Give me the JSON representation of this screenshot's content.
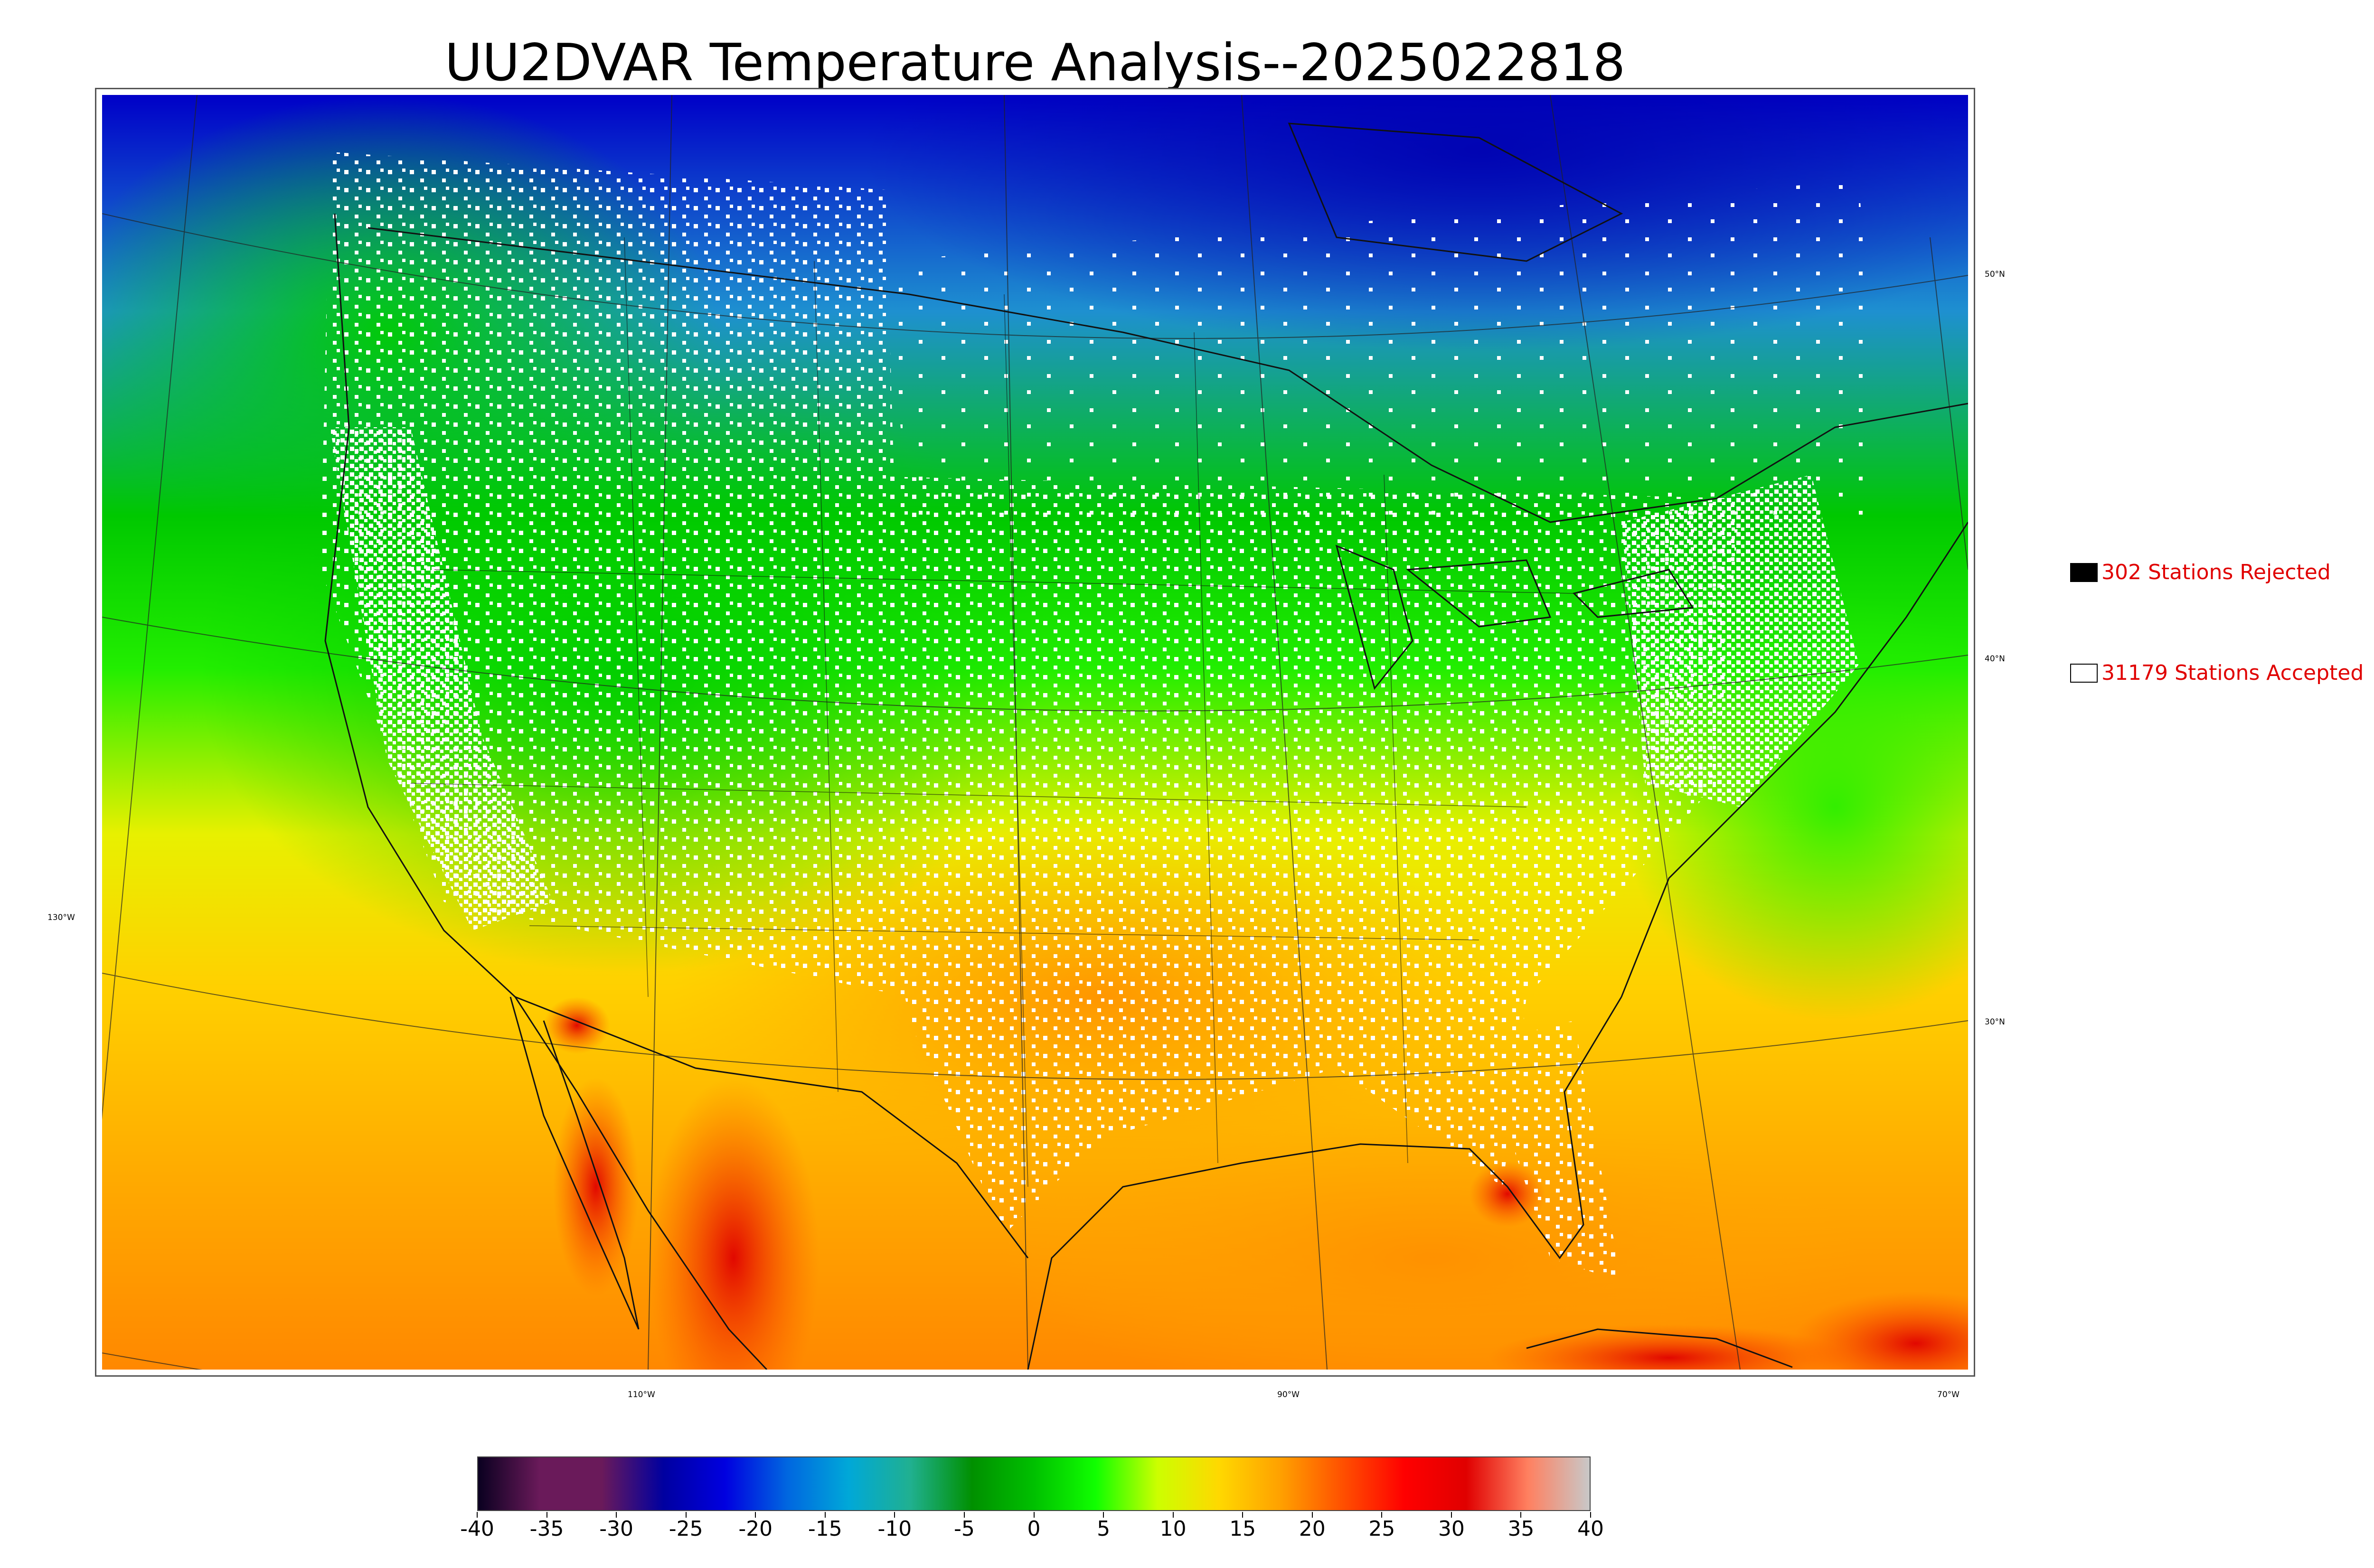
{
  "title": "UU2DVAR Temperature Analysis--2025022818",
  "legend": {
    "rejected": {
      "label": "302 Stations Rejected",
      "swatch_color": "#000000"
    },
    "accepted": {
      "label": "31179 Stations Accepted",
      "swatch_color": "#ffffff"
    }
  },
  "map": {
    "projection": "lambert-conformal",
    "coordinate_labels": {
      "lat_50": "50°N",
      "lat_40": "40°N",
      "lat_30": "30°N",
      "lon_130": "130°W",
      "lon_110": "110°W",
      "lon_90": "90°W",
      "lon_70": "70°W"
    },
    "colors": {
      "north_cold": "#0000c8",
      "mid_cool": "#1e90d0",
      "green": "#00c800",
      "bright_green": "#22ee00",
      "yellow": "#e8f000",
      "orange": "#ffaa00",
      "hot_red": "#e00000"
    }
  },
  "colorbar": {
    "tick_labels": [
      "-40",
      "-35",
      "-30",
      "-25",
      "-20",
      "-15",
      "-10",
      "-5",
      "0",
      "5",
      "10",
      "15",
      "20",
      "25",
      "30",
      "35",
      "40"
    ],
    "range": [
      -40,
      40
    ],
    "colors": [
      "#0a0020",
      "#6a1a5a",
      "#6a1a5a",
      "#0000a0",
      "#0000e0",
      "#0066e0",
      "#00a8d8",
      "#20b090",
      "#009000",
      "#00c000",
      "#10ff00",
      "#ccff00",
      "#ffd800",
      "#ffa000",
      "#ff5000",
      "#ff0000",
      "#e00000",
      "#ff8060",
      "#c8c8c8"
    ]
  }
}
